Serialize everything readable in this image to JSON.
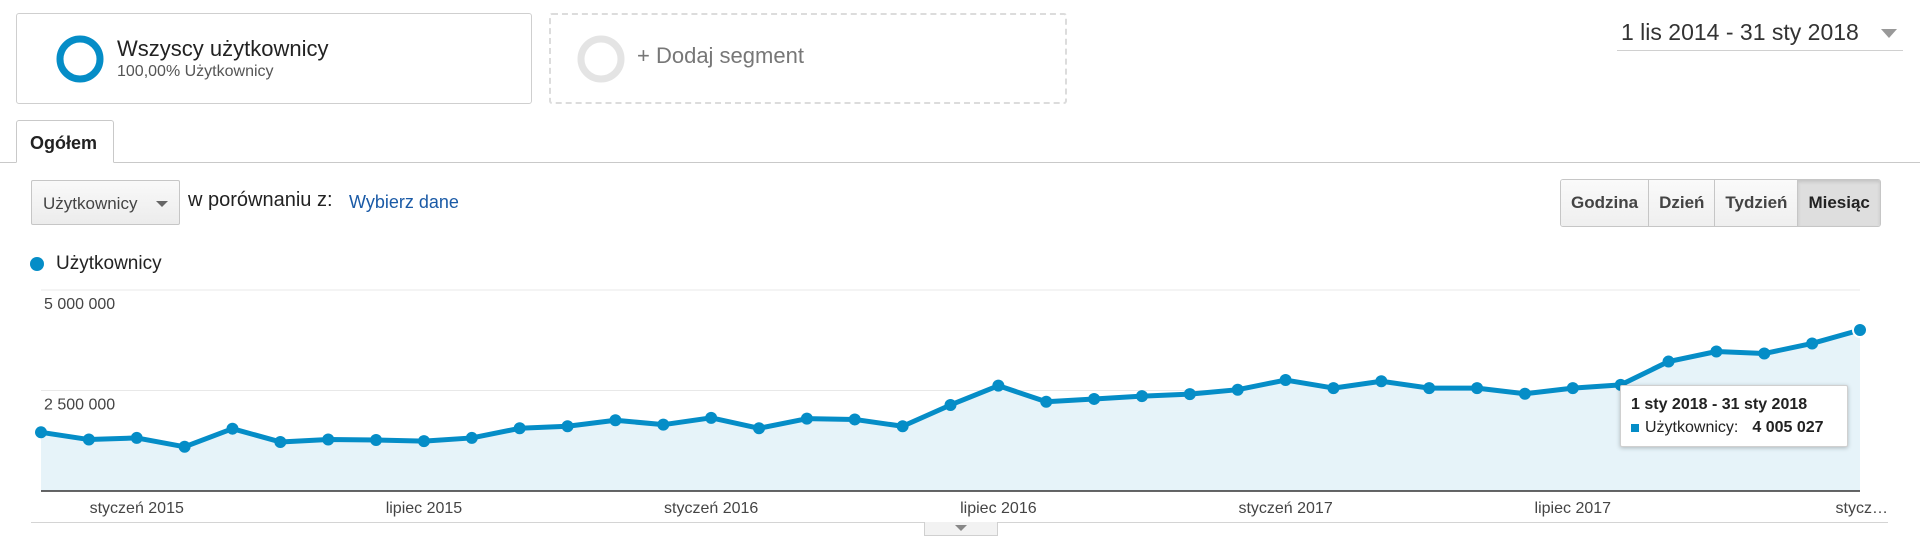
{
  "segments": {
    "active": {
      "title": "Wszyscy użytkownicy",
      "subtitle": "100,00% Użytkownicy"
    },
    "add_label": "+ Dodaj segment"
  },
  "date_range": "1 lis 2014 - 31 sty 2018",
  "tabs": [
    {
      "label": "Ogółem",
      "active": true
    }
  ],
  "controls": {
    "metric_select": "Użytkownicy",
    "compare_label": "w porównaniu z:",
    "compare_link": "Wybierz dane",
    "periods": [
      "Godzina",
      "Dzień",
      "Tydzień",
      "Miesiąc"
    ],
    "active_period": "Miesiąc"
  },
  "legend": {
    "label": "Użytkownicy"
  },
  "tooltip": {
    "date": "1 sty 2018 - 31 sty 2018",
    "label": "Użytkownicy:",
    "value": "4 005 027"
  },
  "colors": {
    "series": "#058dc7",
    "area": "#e6f3f9",
    "link": "#1a5aa6"
  },
  "icons": {
    "segment": "donut-ring-icon",
    "add_segment": "empty-ring-icon",
    "dropdown": "caret-down-icon"
  },
  "chart_data": {
    "type": "area",
    "ylim": [
      0,
      5000000
    ],
    "y_ticks": [
      {
        "label": "5 000 000",
        "value": 5000000
      },
      {
        "label": "2 500 000",
        "value": 2500000
      }
    ],
    "x_ticks": [
      {
        "label": "styczeń 2015",
        "index": 2
      },
      {
        "label": "lipiec 2015",
        "index": 8
      },
      {
        "label": "styczeń 2016",
        "index": 14
      },
      {
        "label": "lipiec 2016",
        "index": 20
      },
      {
        "label": "styczeń 2017",
        "index": 26
      },
      {
        "label": "lipiec 2017",
        "index": 32
      },
      {
        "label": "stycz…",
        "index": 38
      }
    ],
    "grid": true,
    "series": [
      {
        "name": "Użytkownicy",
        "x": [
          "2014-11",
          "2014-12",
          "2015-01",
          "2015-02",
          "2015-03",
          "2015-04",
          "2015-05",
          "2015-06",
          "2015-07",
          "2015-08",
          "2015-09",
          "2015-10",
          "2015-11",
          "2015-12",
          "2016-01",
          "2016-02",
          "2016-03",
          "2016-04",
          "2016-05",
          "2016-06",
          "2016-07",
          "2016-08",
          "2016-09",
          "2016-10",
          "2016-11",
          "2016-12",
          "2017-01",
          "2017-02",
          "2017-03",
          "2017-04",
          "2017-05",
          "2017-06",
          "2017-07",
          "2017-08",
          "2017-09",
          "2017-10",
          "2017-11",
          "2017-12",
          "2018-01"
        ],
        "values": [
          1460000,
          1280000,
          1320000,
          1100000,
          1550000,
          1220000,
          1280000,
          1270000,
          1240000,
          1320000,
          1560000,
          1610000,
          1760000,
          1650000,
          1820000,
          1560000,
          1800000,
          1780000,
          1610000,
          2140000,
          2620000,
          2220000,
          2290000,
          2360000,
          2410000,
          2520000,
          2760000,
          2560000,
          2730000,
          2560000,
          2560000,
          2420000,
          2560000,
          2640000,
          3220000,
          3470000,
          3420000,
          3670000,
          4005027
        ]
      }
    ]
  }
}
